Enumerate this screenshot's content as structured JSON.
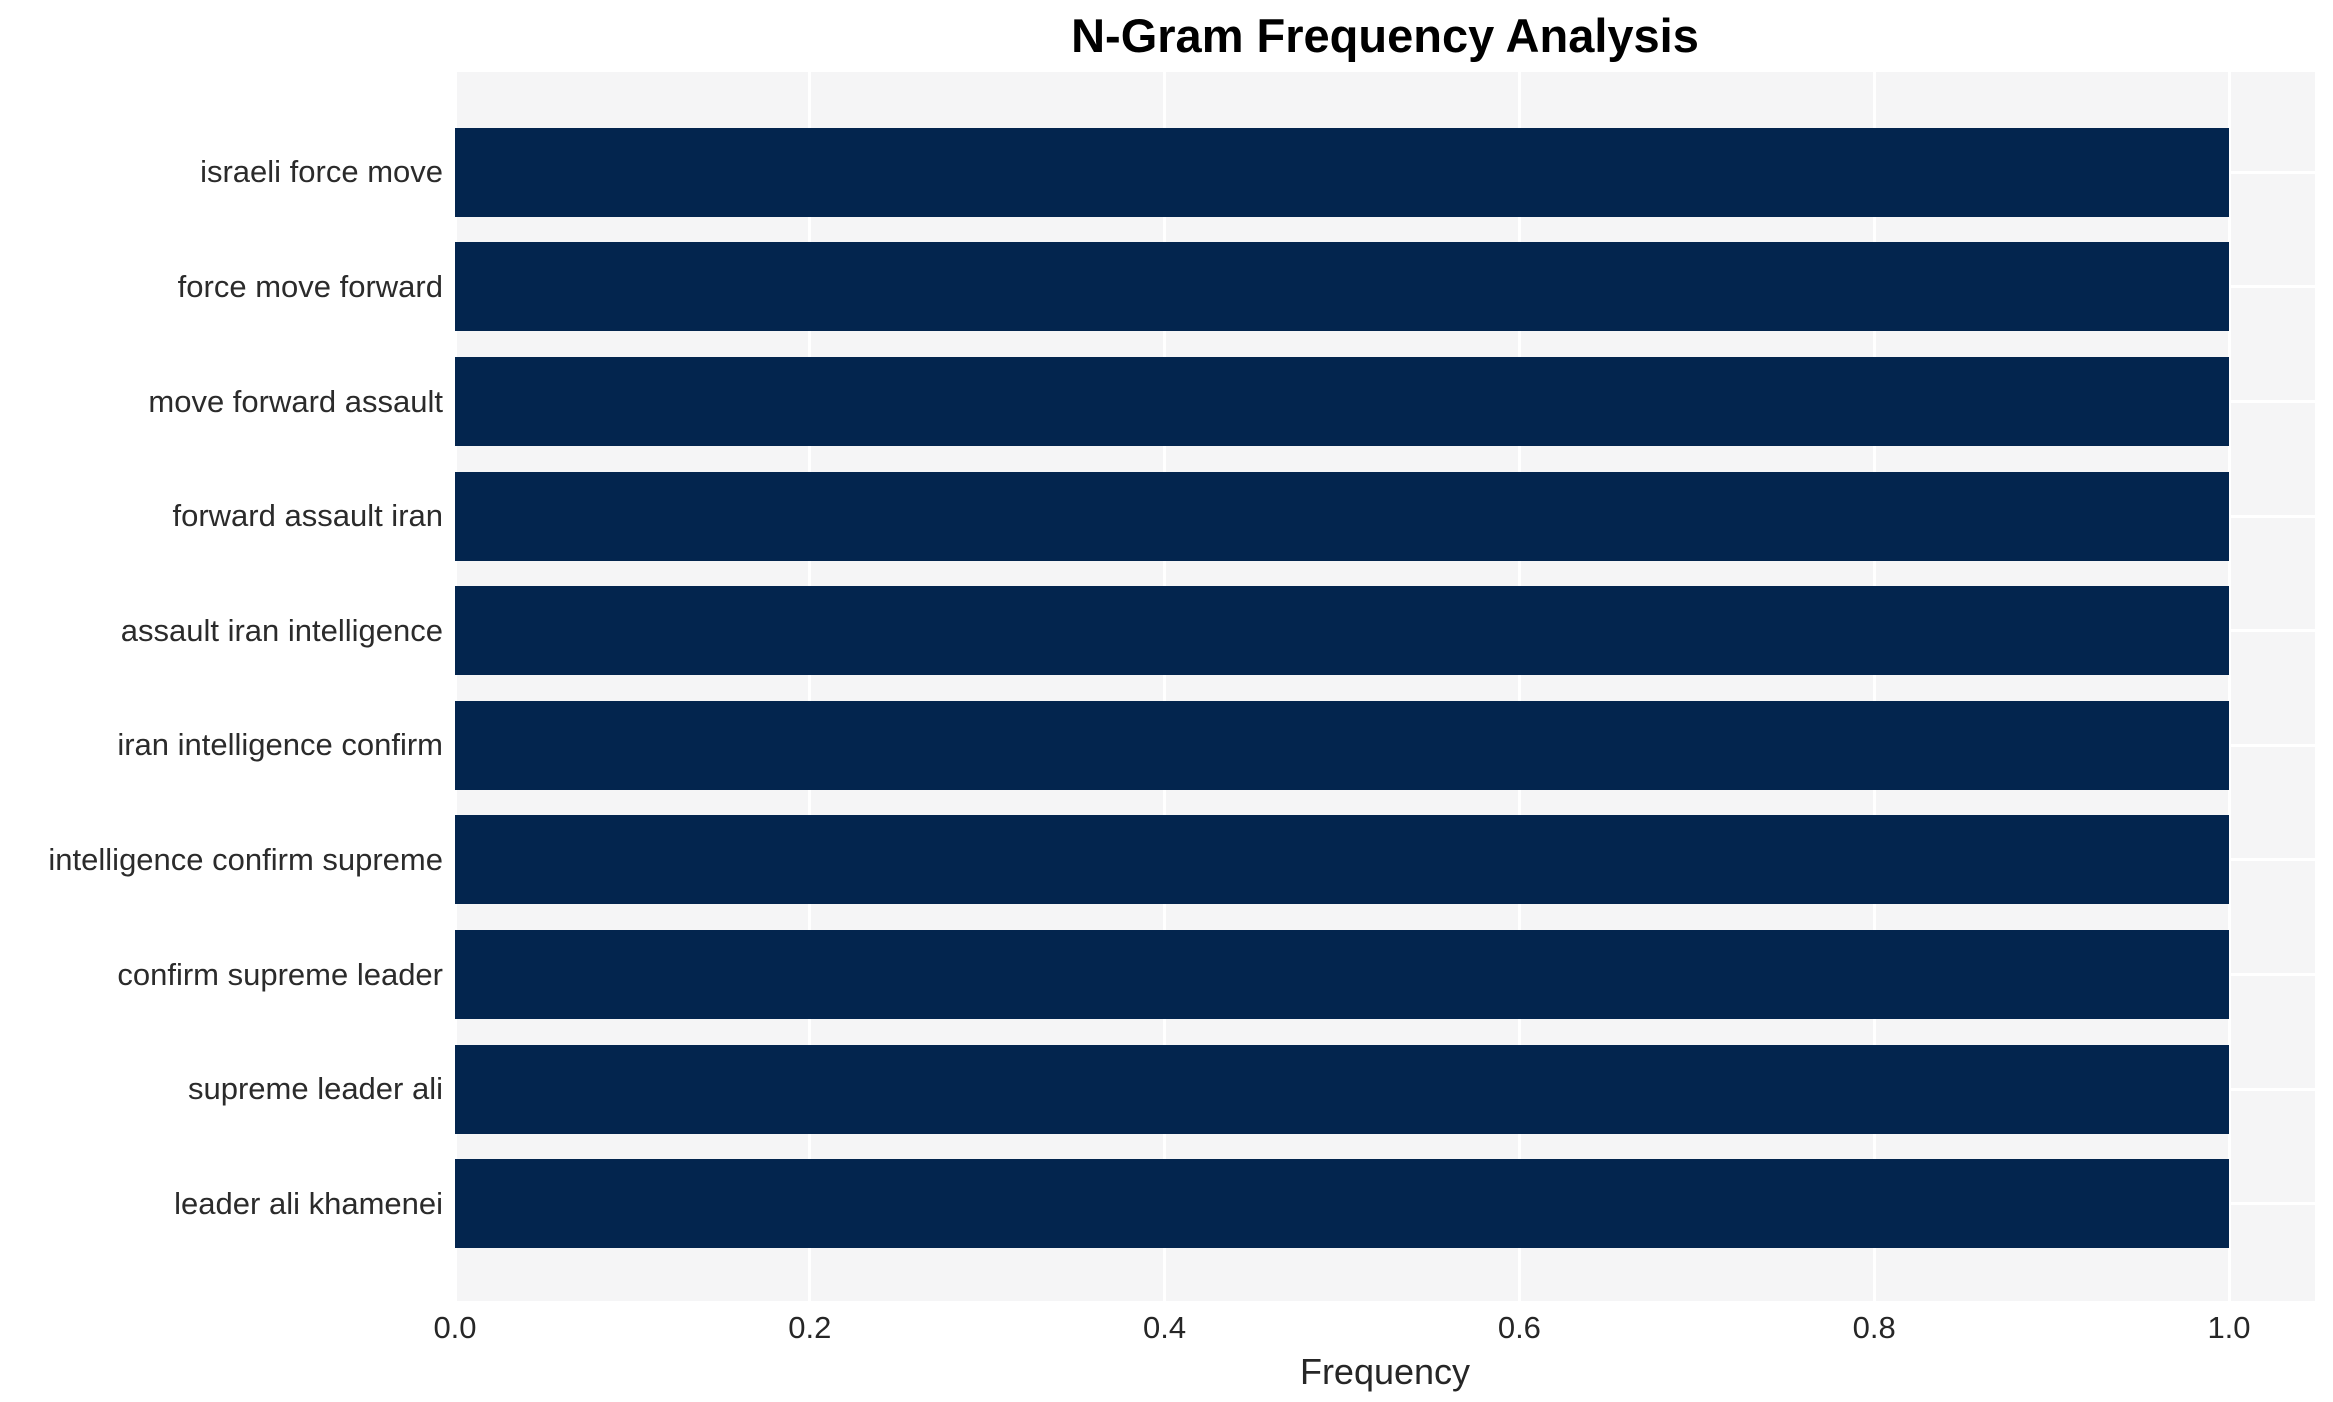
{
  "chart_data": {
    "type": "bar",
    "orientation": "horizontal",
    "title": "N-Gram Frequency Analysis",
    "xlabel": "Frequency",
    "ylabel": "",
    "categories": [
      "israeli force move",
      "force move forward",
      "move forward assault",
      "forward assault iran",
      "assault iran intelligence",
      "iran intelligence confirm",
      "intelligence confirm supreme",
      "confirm supreme leader",
      "supreme leader ali",
      "leader ali khamenei"
    ],
    "values": [
      1.0,
      1.0,
      1.0,
      1.0,
      1.0,
      1.0,
      1.0,
      1.0,
      1.0,
      1.0
    ],
    "x_tick_labels": [
      "0.0",
      "0.2",
      "0.4",
      "0.6",
      "0.8",
      "1.0"
    ],
    "x_tick_values": [
      0.0,
      0.2,
      0.4,
      0.6,
      0.8,
      1.0
    ],
    "xlim": [
      0.0,
      1.05
    ],
    "grid": true,
    "legend": null,
    "colors": {
      "bar": "#03254e",
      "plot_background": "#f5f5f6",
      "gridline": "#ffffff",
      "category_label_text": "#2b2b2b",
      "tick_text": "#262626",
      "title_text": "#000000",
      "page_background": "#ffffff"
    }
  }
}
